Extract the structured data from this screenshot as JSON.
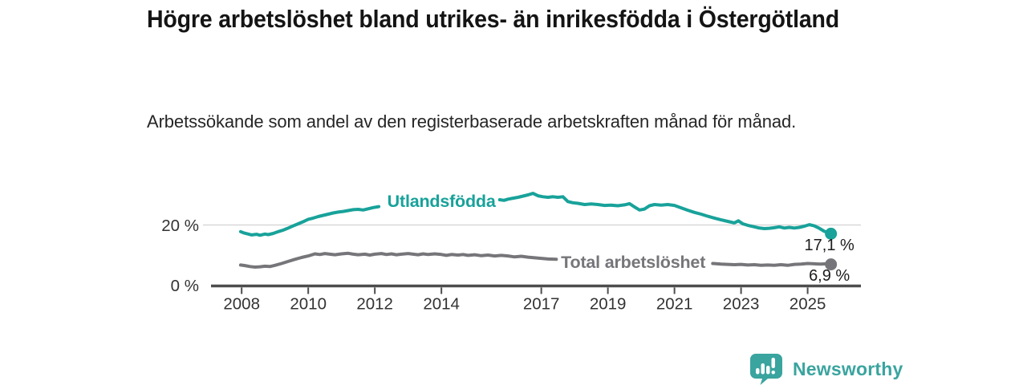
{
  "header": {
    "title": "Högre arbetslöshet bland utrikes- än inrikesfödda i Östergötland",
    "subtitle": "Arbetssökande som andel av den registerbaserade arbetskraften månad för månad."
  },
  "chart_data": {
    "type": "line",
    "title": "Högre arbetslöshet bland utrikes- än inrikesfödda i Östergötland",
    "xlabel": "",
    "ylabel": "",
    "grid": "horizontal gridline at 20 % only",
    "legend_position": "inline labels on lines",
    "xlim": [
      2007.08,
      2026.6
    ],
    "ylim": [
      0,
      34.8
    ],
    "x_ticks": [
      2008,
      2010,
      2012,
      2014,
      2017,
      2019,
      2021,
      2023,
      2025
    ],
    "x_tick_labels": [
      "2008",
      "2010",
      "2012",
      "2014",
      "2017",
      "2019",
      "2021",
      "2023",
      "2025"
    ],
    "y_ticks": [
      0,
      20
    ],
    "y_tick_labels": [
      "0 %",
      "20 %"
    ],
    "y_gridlines": [
      20
    ],
    "axis_color": "#4d4d4d",
    "gridline_color": "#d8d8d8",
    "tick_label_color": "#333333",
    "value_label_color": "#1d1d1d",
    "series": [
      {
        "name": "Utlandsfödda",
        "color": "#18a29a",
        "end_label": "17,1 %",
        "end_value": 17.1,
        "label_pos": {
          "x": 2014.0,
          "y": 28.0
        },
        "segments": [
          [
            [
              2007.97,
              17.8
            ],
            [
              2008.08,
              17.3
            ],
            [
              2008.2,
              17.0
            ],
            [
              2008.3,
              16.7
            ],
            [
              2008.45,
              16.9
            ],
            [
              2008.55,
              16.6
            ],
            [
              2008.7,
              17.0
            ],
            [
              2008.8,
              16.8
            ],
            [
              2008.95,
              17.2
            ],
            [
              2009.1,
              17.8
            ],
            [
              2009.25,
              18.3
            ],
            [
              2009.4,
              19.0
            ],
            [
              2009.55,
              19.7
            ],
            [
              2009.7,
              20.4
            ],
            [
              2009.85,
              21.1
            ],
            [
              2010.0,
              21.9
            ],
            [
              2010.15,
              22.3
            ],
            [
              2010.3,
              22.8
            ],
            [
              2010.45,
              23.2
            ],
            [
              2010.6,
              23.6
            ],
            [
              2010.75,
              24.0
            ],
            [
              2010.9,
              24.3
            ],
            [
              2011.05,
              24.5
            ],
            [
              2011.2,
              24.8
            ],
            [
              2011.35,
              25.1
            ],
            [
              2011.5,
              25.2
            ],
            [
              2011.65,
              25.0
            ],
            [
              2011.8,
              25.4
            ],
            [
              2011.95,
              25.8
            ],
            [
              2012.12,
              26.1
            ]
          ],
          [
            [
              2015.75,
              28.4
            ],
            [
              2015.88,
              28.2
            ],
            [
              2016.0,
              28.6
            ],
            [
              2016.15,
              28.9
            ],
            [
              2016.3,
              29.2
            ],
            [
              2016.45,
              29.6
            ],
            [
              2016.6,
              30.0
            ],
            [
              2016.75,
              30.5
            ],
            [
              2016.9,
              29.7
            ],
            [
              2017.05,
              29.4
            ],
            [
              2017.2,
              29.2
            ],
            [
              2017.35,
              29.4
            ],
            [
              2017.5,
              29.2
            ],
            [
              2017.65,
              29.4
            ],
            [
              2017.8,
              27.8
            ],
            [
              2017.95,
              27.4
            ],
            [
              2018.1,
              27.2
            ],
            [
              2018.3,
              26.8
            ],
            [
              2018.5,
              27.0
            ],
            [
              2018.7,
              26.8
            ],
            [
              2018.9,
              26.5
            ],
            [
              2019.1,
              26.6
            ],
            [
              2019.3,
              26.4
            ],
            [
              2019.5,
              26.7
            ],
            [
              2019.65,
              27.1
            ],
            [
              2019.8,
              26.0
            ],
            [
              2019.95,
              25.0
            ],
            [
              2020.1,
              25.3
            ],
            [
              2020.25,
              26.4
            ],
            [
              2020.4,
              26.8
            ],
            [
              2020.6,
              26.6
            ],
            [
              2020.8,
              26.8
            ],
            [
              2021.0,
              26.5
            ],
            [
              2021.2,
              25.7
            ],
            [
              2021.4,
              24.9
            ],
            [
              2021.6,
              24.2
            ],
            [
              2021.8,
              23.6
            ],
            [
              2022.0,
              22.9
            ],
            [
              2022.2,
              22.3
            ],
            [
              2022.4,
              21.7
            ],
            [
              2022.6,
              21.2
            ],
            [
              2022.8,
              20.7
            ],
            [
              2022.92,
              21.4
            ],
            [
              2023.05,
              20.4
            ],
            [
              2023.2,
              19.9
            ],
            [
              2023.4,
              19.4
            ],
            [
              2023.55,
              19.0
            ],
            [
              2023.7,
              18.8
            ],
            [
              2023.85,
              18.9
            ],
            [
              2024.0,
              19.1
            ],
            [
              2024.15,
              19.4
            ],
            [
              2024.3,
              19.0
            ],
            [
              2024.45,
              19.2
            ],
            [
              2024.6,
              19.0
            ],
            [
              2024.75,
              19.2
            ],
            [
              2024.9,
              19.6
            ],
            [
              2025.05,
              20.1
            ],
            [
              2025.2,
              19.7
            ],
            [
              2025.35,
              18.9
            ],
            [
              2025.5,
              17.9
            ],
            [
              2025.7,
              17.1
            ]
          ]
        ]
      },
      {
        "name": "Total arbetslöshet",
        "color": "#76767a",
        "end_label": "6,9 %",
        "end_value": 6.9,
        "label_pos": {
          "x": 2019.76,
          "y": 7.7
        },
        "segments": [
          [
            [
              2007.97,
              6.7
            ],
            [
              2008.1,
              6.5
            ],
            [
              2008.25,
              6.2
            ],
            [
              2008.4,
              6.0
            ],
            [
              2008.55,
              6.1
            ],
            [
              2008.7,
              6.3
            ],
            [
              2008.85,
              6.2
            ],
            [
              2009.0,
              6.6
            ],
            [
              2009.2,
              7.2
            ],
            [
              2009.4,
              7.9
            ],
            [
              2009.6,
              8.6
            ],
            [
              2009.8,
              9.2
            ],
            [
              2010.0,
              9.7
            ],
            [
              2010.2,
              10.4
            ],
            [
              2010.35,
              10.2
            ],
            [
              2010.5,
              10.5
            ],
            [
              2010.65,
              10.3
            ],
            [
              2010.8,
              10.1
            ],
            [
              2011.0,
              10.4
            ],
            [
              2011.2,
              10.6
            ],
            [
              2011.35,
              10.3
            ],
            [
              2011.5,
              10.1
            ],
            [
              2011.7,
              10.3
            ],
            [
              2011.85,
              10.0
            ],
            [
              2012.0,
              10.3
            ],
            [
              2012.2,
              10.5
            ],
            [
              2012.35,
              10.2
            ],
            [
              2012.5,
              10.4
            ],
            [
              2012.65,
              10.1
            ],
            [
              2012.8,
              10.3
            ],
            [
              2013.0,
              10.5
            ],
            [
              2013.15,
              10.3
            ],
            [
              2013.3,
              10.1
            ],
            [
              2013.45,
              10.4
            ],
            [
              2013.6,
              10.2
            ],
            [
              2013.8,
              10.4
            ],
            [
              2014.0,
              10.2
            ],
            [
              2014.15,
              9.9
            ],
            [
              2014.3,
              10.2
            ],
            [
              2014.5,
              10.0
            ],
            [
              2014.65,
              10.2
            ],
            [
              2014.8,
              9.9
            ],
            [
              2015.0,
              10.1
            ],
            [
              2015.2,
              9.8
            ],
            [
              2015.4,
              10.0
            ],
            [
              2015.6,
              9.7
            ],
            [
              2015.8,
              9.9
            ],
            [
              2016.0,
              9.7
            ],
            [
              2016.2,
              9.4
            ],
            [
              2016.4,
              9.6
            ],
            [
              2016.6,
              9.3
            ],
            [
              2016.8,
              9.1
            ],
            [
              2017.0,
              8.9
            ],
            [
              2017.2,
              8.7
            ],
            [
              2017.45,
              8.6
            ]
          ],
          [
            [
              2022.15,
              7.2
            ],
            [
              2022.4,
              7.0
            ],
            [
              2022.6,
              6.9
            ],
            [
              2022.8,
              6.8
            ],
            [
              2023.0,
              6.9
            ],
            [
              2023.2,
              6.7
            ],
            [
              2023.4,
              6.8
            ],
            [
              2023.6,
              6.6
            ],
            [
              2023.8,
              6.7
            ],
            [
              2024.0,
              6.6
            ],
            [
              2024.2,
              6.8
            ],
            [
              2024.4,
              6.6
            ],
            [
              2024.6,
              6.9
            ],
            [
              2024.8,
              7.0
            ],
            [
              2025.0,
              7.2
            ],
            [
              2025.2,
              7.1
            ],
            [
              2025.4,
              7.0
            ],
            [
              2025.55,
              7.1
            ],
            [
              2025.7,
              6.9
            ]
          ]
        ]
      }
    ]
  },
  "footer": {
    "brand": "Newsworthy",
    "logo_color": "#3aa49f",
    "logo_icon": "speech-bubble-bar-chart-exclamation"
  }
}
